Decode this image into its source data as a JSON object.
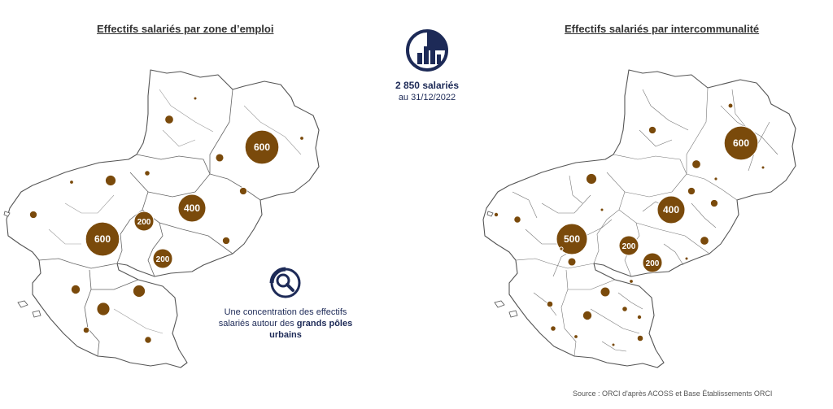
{
  "titles": {
    "left": "Effectifs salariés par zone d’emploi",
    "right": "Effectifs salariés par intercommunalité"
  },
  "headline": {
    "icon": "bar-chart-circle-icon",
    "total": "2 850 salariés",
    "date": "au 31/12/2022"
  },
  "insight": {
    "icon": "magnifier-circle-icon",
    "text_before": "Une concentration des effectifs salariés autour des",
    "text_bold": "grands pôles urbains"
  },
  "source": "Source : ORCI d'après ACOSS et Base Établissements ORCI",
  "colors": {
    "bubble": "#7a4a0b",
    "border": "#555555",
    "accent": "#1d2a57",
    "label": "#ffffff"
  },
  "maps": {
    "left": {
      "bubbles": [
        {
          "label": "600",
          "value": 600
        },
        {
          "label": "600",
          "value": 600
        },
        {
          "label": "400",
          "value": 400
        },
        {
          "label": "200",
          "value": 200
        },
        {
          "label": "200",
          "value": 200
        },
        {
          "label": "",
          "value": 90
        },
        {
          "label": "",
          "value": 80
        },
        {
          "label": "",
          "value": 60
        },
        {
          "label": "",
          "value": 45
        },
        {
          "label": "",
          "value": 40
        },
        {
          "label": "",
          "value": 35
        },
        {
          "label": "",
          "value": 30
        },
        {
          "label": "",
          "value": 30
        },
        {
          "label": "",
          "value": 30
        },
        {
          "label": "",
          "value": 25
        },
        {
          "label": "",
          "value": 20
        },
        {
          "label": "",
          "value": 15
        },
        {
          "label": "",
          "value": 8
        },
        {
          "label": "",
          "value": 8
        },
        {
          "label": "",
          "value": 5
        }
      ]
    },
    "right": {
      "bubbles": [
        {
          "label": "600",
          "value": 600
        },
        {
          "label": "500",
          "value": 500
        },
        {
          "label": "400",
          "value": 400
        },
        {
          "label": "200",
          "value": 200
        },
        {
          "label": "200",
          "value": 200
        },
        {
          "label": "",
          "value": 60
        },
        {
          "label": "",
          "value": 50
        },
        {
          "label": "",
          "value": 45
        },
        {
          "label": "",
          "value": 40
        },
        {
          "label": "",
          "value": 40
        },
        {
          "label": "",
          "value": 35
        },
        {
          "label": "",
          "value": 30
        },
        {
          "label": "",
          "value": 30
        },
        {
          "label": "",
          "value": 30
        },
        {
          "label": "",
          "value": 25
        },
        {
          "label": "",
          "value": 20
        },
        {
          "label": "",
          "value": 20
        },
        {
          "label": "",
          "value": 15
        },
        {
          "label": "",
          "value": 15
        },
        {
          "label": "",
          "value": 12
        },
        {
          "label": "",
          "value": 10
        },
        {
          "label": "",
          "value": 10
        },
        {
          "label": "",
          "value": 8
        },
        {
          "label": "",
          "value": 8
        },
        {
          "label": "",
          "value": 6
        },
        {
          "label": "",
          "value": 6
        },
        {
          "label": "",
          "value": 5
        },
        {
          "label": "",
          "value": 5
        },
        {
          "label": "",
          "value": 5
        },
        {
          "label": "",
          "value": 5
        }
      ]
    }
  }
}
